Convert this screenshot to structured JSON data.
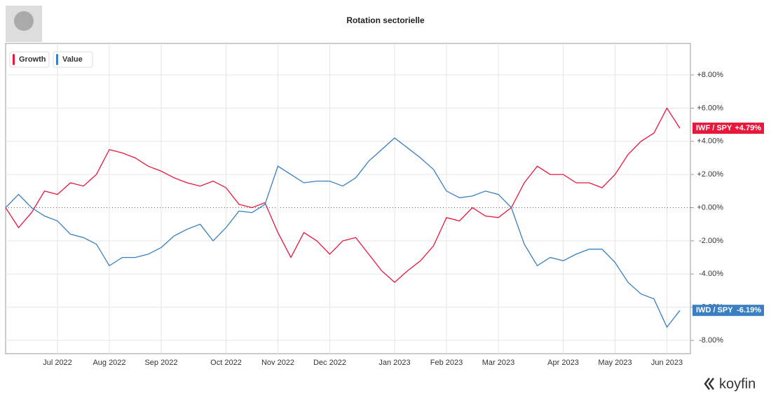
{
  "chart_data": {
    "type": "line",
    "title": "Rotation sectorielle",
    "brand": "koyfin",
    "categories": [
      null,
      null,
      null,
      null,
      "Jul 2022",
      null,
      null,
      null,
      "Aug 2022",
      null,
      null,
      null,
      "Sep 2022",
      null,
      null,
      null,
      null,
      "Oct 2022",
      null,
      null,
      null,
      "Nov 2022",
      null,
      null,
      null,
      "Dec 2022",
      null,
      null,
      null,
      null,
      "Jan 2023",
      null,
      null,
      null,
      "Feb 2023",
      null,
      null,
      null,
      "Mar 2023",
      null,
      null,
      null,
      null,
      "Apr 2023",
      null,
      null,
      null,
      "May 2023",
      null,
      null,
      null,
      "Jun 2023",
      null
    ],
    "series": [
      {
        "name": "Growth",
        "color": "#e8173c",
        "last_label": "IWF / SPY",
        "last_value_label": "+4.79%",
        "values": [
          0,
          -1.2,
          -0.3,
          1.0,
          0.8,
          1.5,
          1.3,
          2.0,
          3.5,
          3.3,
          3.0,
          2.5,
          2.2,
          1.8,
          1.5,
          1.3,
          1.6,
          1.2,
          0.2,
          0.0,
          0.3,
          -1.5,
          -3.0,
          -1.5,
          -2.0,
          -2.8,
          -2.0,
          -1.8,
          -2.8,
          -3.8,
          -4.5,
          -3.8,
          -3.2,
          -2.3,
          -0.6,
          -0.8,
          0.0,
          -0.5,
          -0.6,
          0.0,
          1.5,
          2.5,
          2.0,
          2.0,
          1.5,
          1.5,
          1.2,
          2.0,
          3.2,
          4.0,
          4.5,
          6.0,
          4.79
        ]
      },
      {
        "name": "Value",
        "color": "#3a7fc1",
        "last_label": "IWD / SPY",
        "last_value_label": "-6.19%",
        "values": [
          0,
          0.8,
          0,
          -0.5,
          -0.8,
          -1.6,
          -1.8,
          -2.2,
          -3.5,
          -3.0,
          -3.0,
          -2.8,
          -2.4,
          -1.7,
          -1.3,
          -1.0,
          -2.0,
          -1.2,
          -0.2,
          -0.3,
          0.2,
          2.5,
          2.0,
          1.5,
          1.6,
          1.6,
          1.3,
          1.8,
          2.8,
          3.5,
          4.2,
          3.6,
          3.0,
          2.3,
          1.0,
          0.6,
          0.7,
          1.0,
          0.8,
          0.0,
          -2.2,
          -3.5,
          -3.0,
          -3.2,
          -2.8,
          -2.5,
          -2.5,
          -3.3,
          -4.5,
          -5.2,
          -5.5,
          -7.2,
          -6.19
        ]
      }
    ],
    "ylim": [
      -8.8,
      9.9
    ],
    "yticks": [
      {
        "value": -8,
        "label": "-8.00%"
      },
      {
        "value": -6,
        "label": "-6.00%"
      },
      {
        "value": -4,
        "label": "-4.00%"
      },
      {
        "value": -2,
        "label": "-2.00%"
      },
      {
        "value": 0,
        "label": "+0.00%"
      },
      {
        "value": 2,
        "label": "+2.00%"
      },
      {
        "value": 4,
        "label": "+4.00%"
      },
      {
        "value": 6,
        "label": "+6.00%"
      },
      {
        "value": 8,
        "label": "+8.00%"
      }
    ],
    "grid": true
  }
}
